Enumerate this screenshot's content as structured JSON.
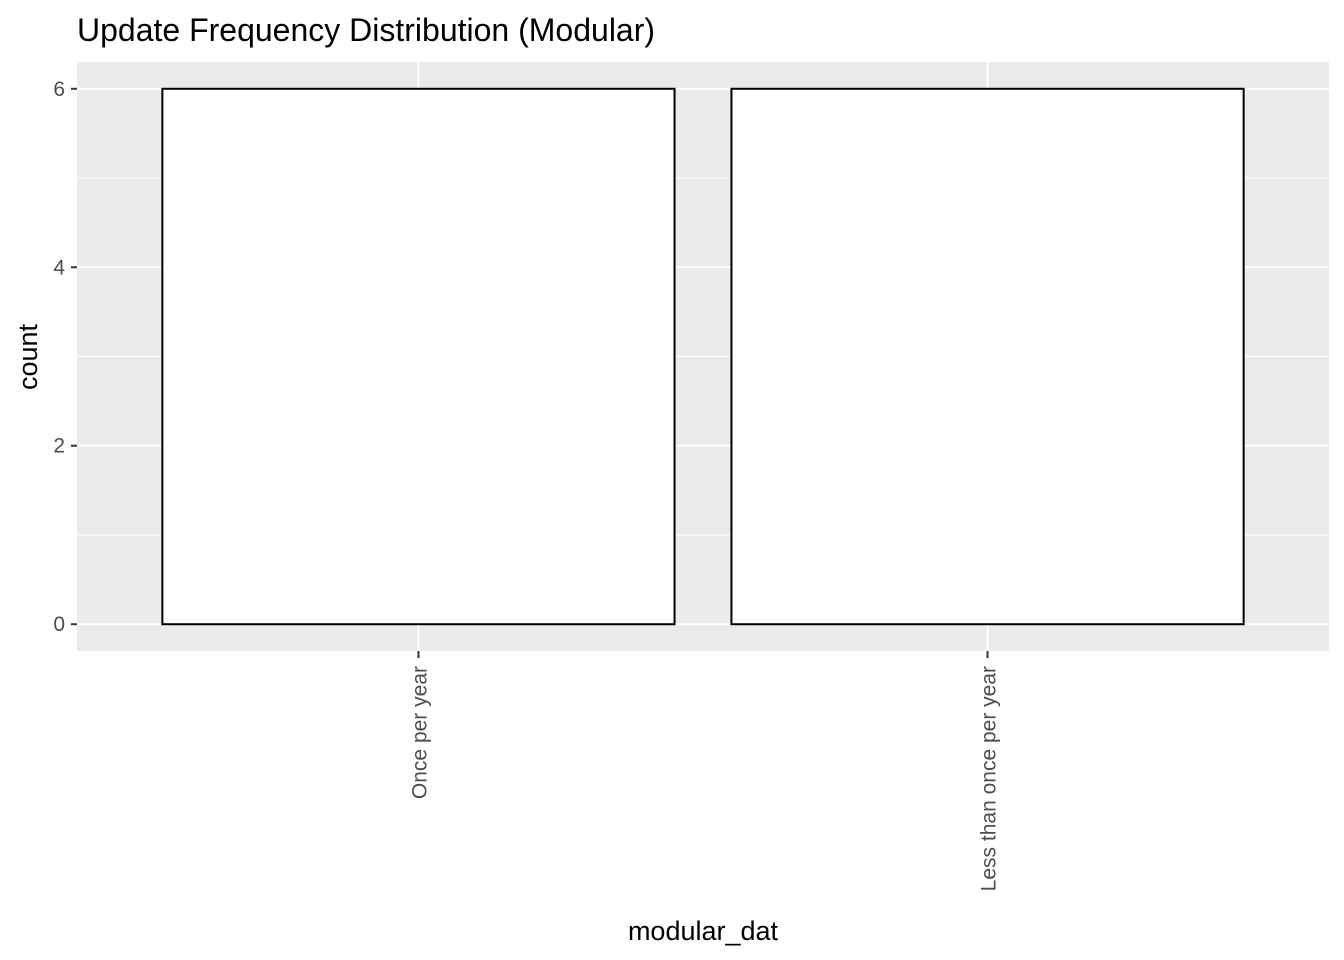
{
  "chart_data": {
    "type": "bar",
    "title": "Update Frequency Distribution (Modular)",
    "xlabel": "modular_dat",
    "ylabel": "count",
    "categories": [
      "Once per year",
      "Less than once per year"
    ],
    "values": [
      6,
      6
    ],
    "yticks": [
      0,
      2,
      4,
      6
    ],
    "ylim": [
      -0.3,
      6.3
    ],
    "grid": true,
    "legend": "none",
    "colors": {
      "panel_background": "#EBEBEB",
      "grid_major": "#FFFFFF",
      "bar_fill": "#FFFFFF",
      "bar_outline": "#000000",
      "tick_text": "#4D4D4D"
    }
  }
}
